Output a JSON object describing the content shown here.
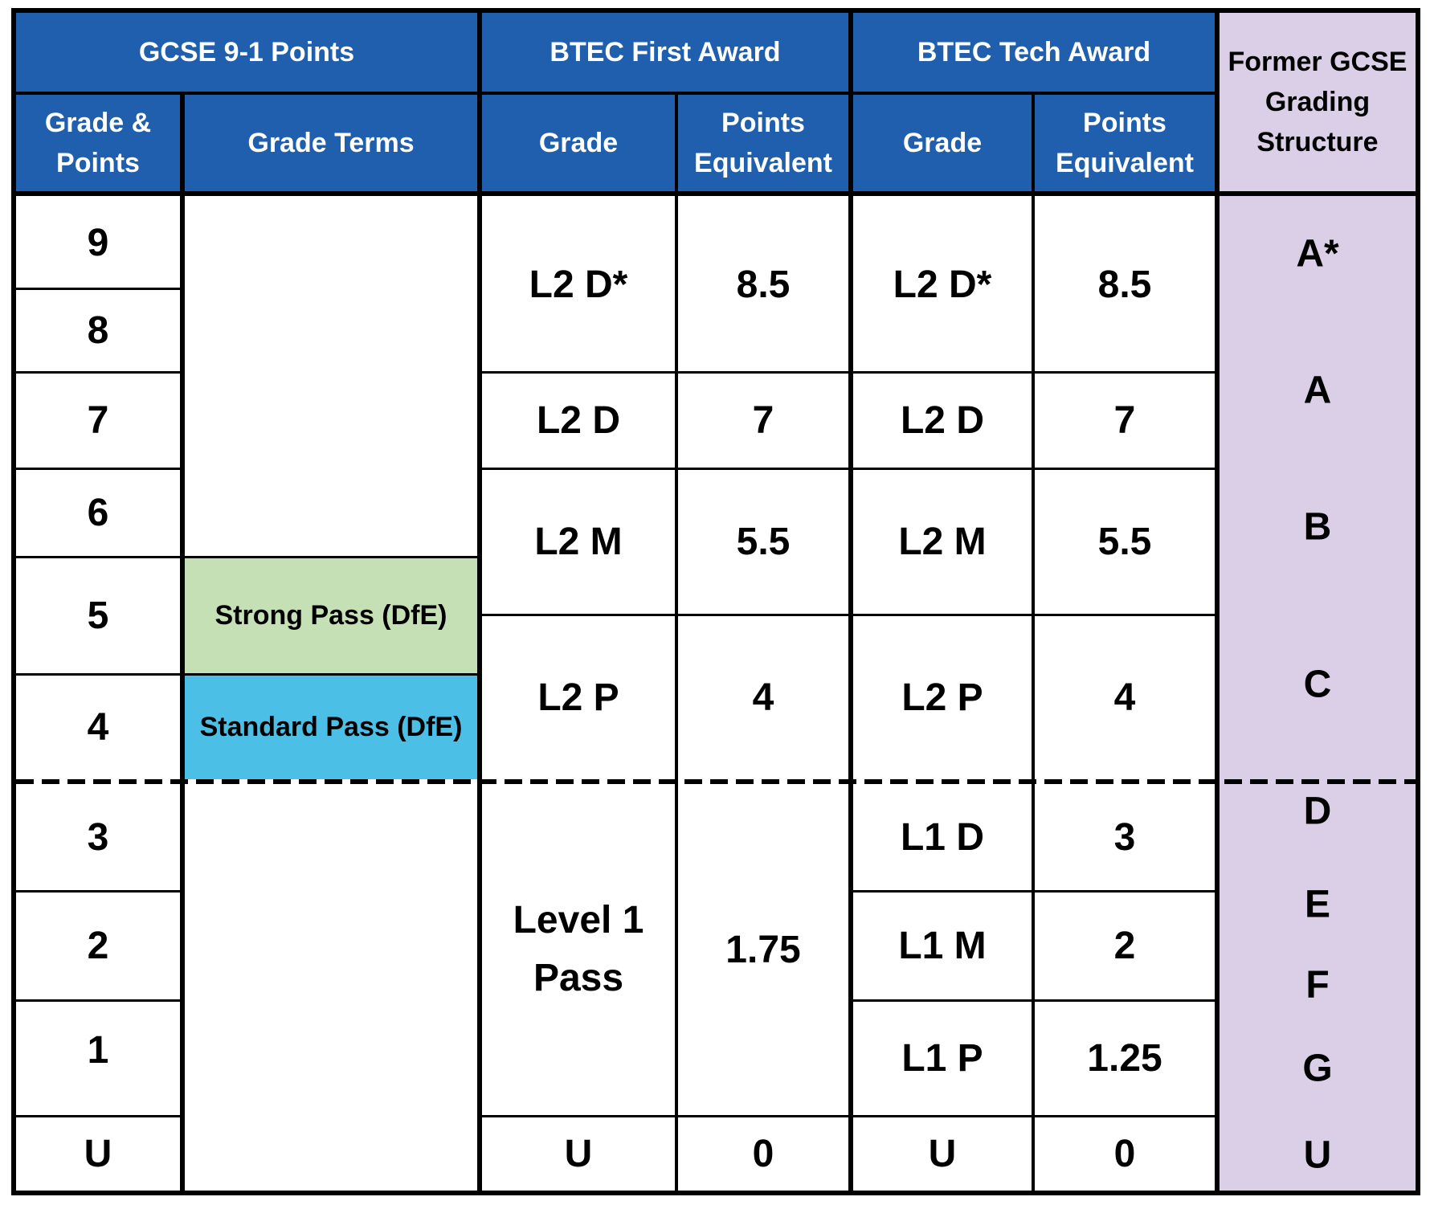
{
  "colors": {
    "header_blue": "#1f5fae",
    "former_purple": "#dacfe6",
    "strong_pass_green": "#c5e0b4",
    "standard_pass_blue": "#4bbfe6"
  },
  "headers": {
    "gcse": "GCSE 9-1 Points",
    "btec_first": "BTEC First Award",
    "btec_tech": "BTEC Tech Award",
    "former": "Former GCSE\nGrading\nStructure",
    "grade_points": "Grade &\nPoints",
    "grade_terms": "Grade Terms",
    "first_grade": "Grade",
    "first_points": "Points\nEquivalent",
    "tech_grade": "Grade",
    "tech_points": "Points\nEquivalent"
  },
  "gcse_grades": [
    "9",
    "8",
    "7",
    "6",
    "5",
    "4",
    "3",
    "2",
    "1",
    "U"
  ],
  "grade_terms": {
    "strong": "Strong Pass (DfE)",
    "standard": "Standard Pass (DfE)"
  },
  "btec_first": [
    {
      "grade": "L2 D*",
      "points": "8.5"
    },
    {
      "grade": "L2 D",
      "points": "7"
    },
    {
      "grade": "L2 M",
      "points": "5.5"
    },
    {
      "grade": "L2 P",
      "points": "4"
    },
    {
      "grade": "Level 1\nPass",
      "points": "1.75"
    },
    {
      "grade": "U",
      "points": "0"
    }
  ],
  "btec_tech": [
    {
      "grade": "L2 D*",
      "points": "8.5"
    },
    {
      "grade": "L2 D",
      "points": "7"
    },
    {
      "grade": "L2 M",
      "points": "5.5"
    },
    {
      "grade": "L2 P",
      "points": "4"
    },
    {
      "grade": "L1 D",
      "points": "3"
    },
    {
      "grade": "L1 M",
      "points": "2"
    },
    {
      "grade": "L1 P",
      "points": "1.25"
    },
    {
      "grade": "U",
      "points": "0"
    }
  ],
  "former_grades": [
    "A*",
    "A",
    "B",
    "C",
    "D",
    "E",
    "F",
    "G",
    "U"
  ]
}
